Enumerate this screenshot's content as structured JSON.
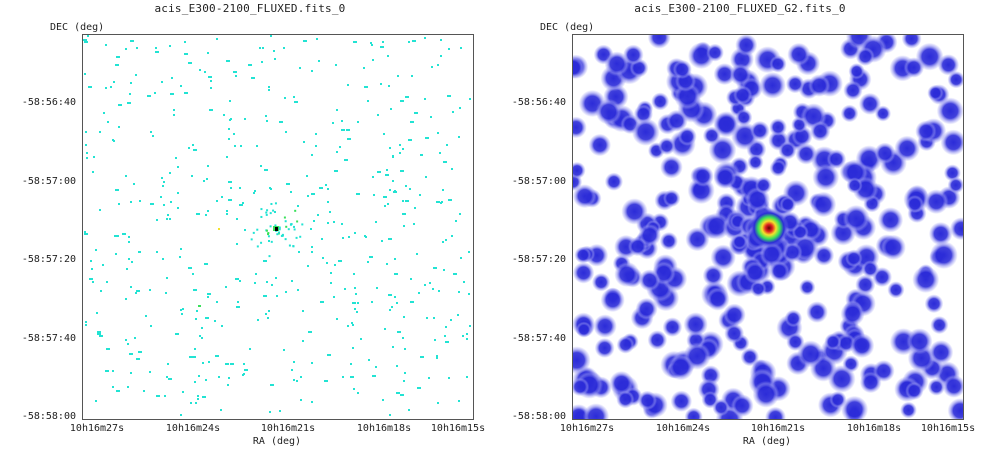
{
  "panels": [
    {
      "title": "acis_E300-2100_FLUXED.fits_0",
      "ylabel": "DEC (deg)",
      "xlabel": "RA (deg)",
      "style": "sparse-pixels"
    },
    {
      "title": "acis_E300-2100_FLUXED_G2.fits_0",
      "ylabel": "DEC (deg)",
      "xlabel": "RA (deg)",
      "style": "smoothed-blobs"
    }
  ],
  "yticks": [
    "-58:56:40",
    "-58:57:00",
    "-58:57:20",
    "-58:57:40",
    "-58:58:00"
  ],
  "xticks": [
    "10h16m27s",
    "10h16m24s",
    "10h16m21s",
    "10h16m18s",
    "10h16m15s"
  ],
  "colors": {
    "cyan": "#22e3d3",
    "blue": "#2b2bd8",
    "light_blue": "#8f8ff0",
    "green": "#39e05a",
    "yellow": "#f5e22b",
    "red": "#e02323",
    "black": "#000000"
  }
}
